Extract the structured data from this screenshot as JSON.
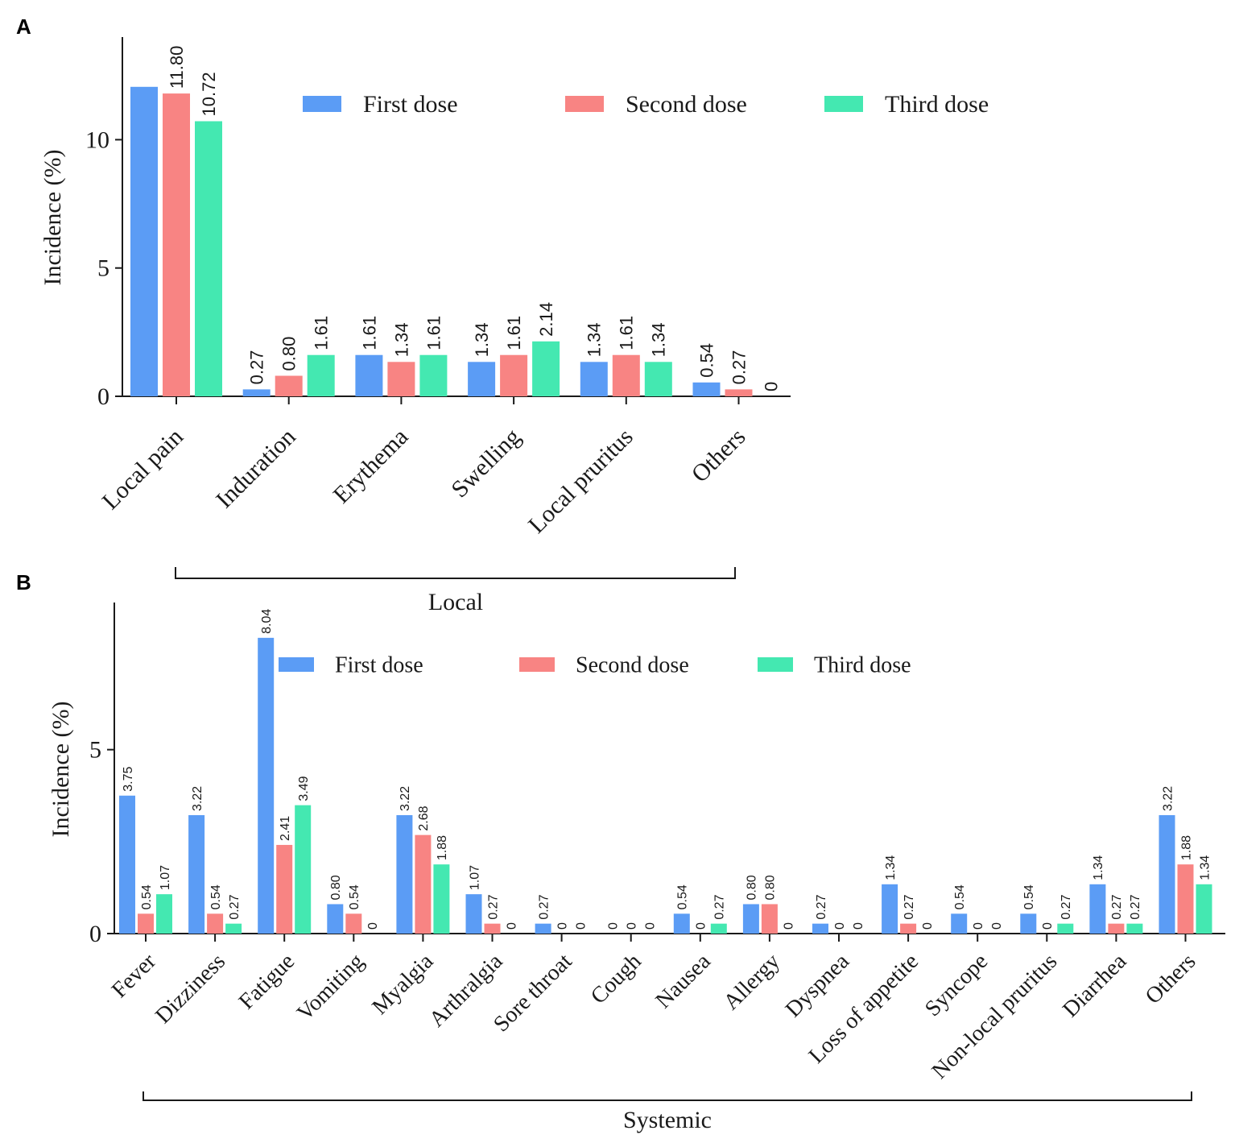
{
  "colors": {
    "first": "#5b9cf5",
    "second": "#f88483",
    "third": "#44e8b1"
  },
  "chart_data": [
    {
      "panel": "A",
      "type": "bar",
      "ylabel": "Incidence (%)",
      "ylim": [
        0,
        14
      ],
      "yticks": [
        "0",
        "5",
        "10"
      ],
      "group_label": "Local",
      "legend": [
        "First dose",
        "Second dose",
        "Third dose"
      ],
      "categories": [
        "Local pain",
        "Induration",
        "Erythema",
        "Swelling",
        "Local pruritus",
        "Others"
      ],
      "series": [
        {
          "name": "First dose",
          "values": [
            12.06,
            0.27,
            1.61,
            1.34,
            1.34,
            0.54
          ],
          "labels": [
            "",
            "0.27",
            "1.61",
            "1.34",
            "1.34",
            "0.54"
          ]
        },
        {
          "name": "Second dose",
          "values": [
            11.8,
            0.8,
            1.34,
            1.61,
            1.61,
            0.27
          ],
          "labels": [
            "11.80",
            "0.80",
            "1.34",
            "1.61",
            "1.61",
            "0.27"
          ]
        },
        {
          "name": "Third dose",
          "values": [
            10.72,
            1.61,
            1.61,
            2.14,
            1.34,
            0
          ],
          "labels": [
            "10.72",
            "1.61",
            "1.61",
            "2.14",
            "1.34",
            "0"
          ]
        }
      ]
    },
    {
      "panel": "B",
      "type": "bar",
      "ylabel": "Incidence (%)",
      "ylim": [
        0,
        9
      ],
      "yticks": [
        "0",
        "5"
      ],
      "group_label": "Systemic",
      "legend": [
        "First dose",
        "Second dose",
        "Third dose"
      ],
      "categories": [
        "Fever",
        "Dizziness",
        "Fatigue",
        "Vomiting",
        "Myalgia",
        "Arthralgia",
        "Sore throat",
        "Cough",
        "Nausea",
        "Allergy",
        "Dyspnea",
        "Loss of appetite",
        "Syncope",
        "Non-local pruritus",
        "Diarrhea",
        "Others"
      ],
      "series": [
        {
          "name": "First dose",
          "values": [
            3.75,
            3.22,
            8.04,
            0.8,
            3.22,
            1.07,
            0.27,
            0,
            0.54,
            0.8,
            0.27,
            1.34,
            0.54,
            0.54,
            1.34,
            3.22
          ],
          "labels": [
            "3.75",
            "3.22",
            "8.04",
            "0.80",
            "3.22",
            "1.07",
            "0.27",
            "0",
            "0.54",
            "0.80",
            "0.27",
            "1.34",
            "0.54",
            "0.54",
            "1.34",
            "3.22"
          ]
        },
        {
          "name": "Second dose",
          "values": [
            0.54,
            0.54,
            2.41,
            0.54,
            2.68,
            0.27,
            0,
            0,
            0,
            0.8,
            0,
            0.27,
            0,
            0,
            0.27,
            1.88
          ],
          "labels": [
            "0.54",
            "0.54",
            "2.41",
            "0.54",
            "2.68",
            "0.27",
            "0",
            "0",
            "0",
            "0.80",
            "0",
            "0.27",
            "0",
            "0",
            "0.27",
            "1.88"
          ]
        },
        {
          "name": "Third dose",
          "values": [
            1.07,
            0.27,
            3.49,
            0,
            1.88,
            0,
            0,
            0,
            0.27,
            0,
            0,
            0,
            0,
            0.27,
            0.27,
            1.34
          ],
          "labels": [
            "1.07",
            "0.27",
            "3.49",
            "0",
            "1.88",
            "0",
            "0",
            "0",
            "0.27",
            "0",
            "0",
            "0",
            "0",
            "0.27",
            "0.27",
            "1.34"
          ]
        }
      ]
    }
  ]
}
